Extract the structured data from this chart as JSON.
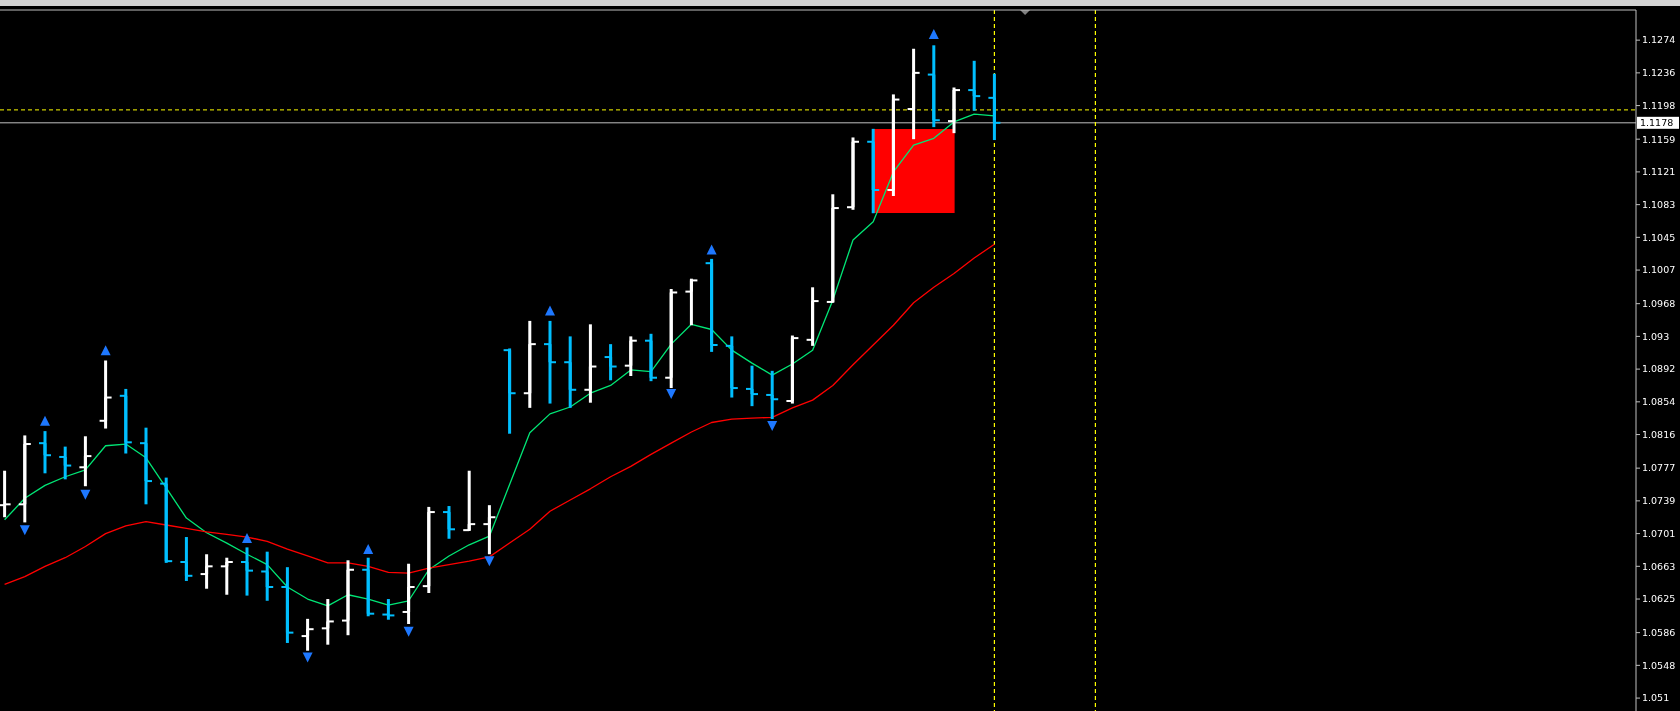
{
  "chart_data": {
    "type": "candlestick",
    "categories": [
      null,
      null,
      null,
      null,
      null,
      null,
      null,
      null,
      null,
      null,
      null,
      null,
      null,
      null,
      null,
      null,
      null,
      null,
      null,
      null,
      null,
      null,
      null,
      null,
      null,
      null,
      null,
      null,
      null,
      null,
      null,
      null,
      null,
      null,
      null,
      null,
      null,
      null,
      null,
      null,
      null,
      null,
      null,
      null,
      null,
      null,
      null,
      null,
      null,
      null
    ],
    "ohlc": [
      [
        1.0734,
        1.0774,
        1.072,
        1.0735
      ],
      [
        1.0735,
        1.0815,
        1.0714,
        1.0805
      ],
      [
        1.0806,
        1.082,
        1.0771,
        1.0792
      ],
      [
        1.079,
        1.0802,
        1.0764,
        1.078
      ],
      [
        1.0778,
        1.0814,
        1.0756,
        1.0791
      ],
      [
        1.0832,
        1.0902,
        1.0823,
        1.0859
      ],
      [
        1.0861,
        1.0869,
        1.0794,
        1.0807
      ],
      [
        1.0806,
        1.0824,
        1.0735,
        1.0762
      ],
      [
        1.0759,
        1.0766,
        1.0667,
        1.0669
      ],
      [
        1.0668,
        1.0697,
        1.0646,
        1.0652
      ],
      [
        1.0654,
        1.0677,
        1.0637,
        1.0663
      ],
      [
        1.0663,
        1.0673,
        1.063,
        1.0668
      ],
      [
        1.0668,
        1.0685,
        1.0629,
        1.0658
      ],
      [
        1.0657,
        1.068,
        1.0623,
        1.0639
      ],
      [
        1.0639,
        1.0662,
        1.0574,
        1.0586
      ],
      [
        1.0582,
        1.0602,
        1.0565,
        1.059
      ],
      [
        1.0591,
        1.0625,
        1.0572,
        1.0599
      ],
      [
        1.06,
        1.067,
        1.0583,
        1.0659
      ],
      [
        1.0659,
        1.0673,
        1.0605,
        1.0608
      ],
      [
        1.0607,
        1.0625,
        1.0601,
        1.0606
      ],
      [
        1.061,
        1.0666,
        1.0596,
        1.0639
      ],
      [
        1.064,
        1.0732,
        1.0632,
        1.0726
      ],
      [
        1.0726,
        1.0733,
        1.0695,
        1.0706
      ],
      [
        1.0705,
        1.0774,
        1.0704,
        1.0712
      ],
      [
        1.0712,
        1.0734,
        1.0677,
        1.072
      ],
      [
        1.0914,
        1.0916,
        1.0817,
        1.0864
      ],
      [
        1.0864,
        1.0948,
        1.0847,
        1.0921
      ],
      [
        1.0921,
        1.0948,
        1.0852,
        1.09
      ],
      [
        1.09,
        1.093,
        1.0847,
        1.0868
      ],
      [
        1.0868,
        1.0944,
        1.0853,
        1.0895
      ],
      [
        1.0906,
        1.0921,
        1.0879,
        1.0895
      ],
      [
        1.0896,
        1.093,
        1.0884,
        1.0925
      ],
      [
        1.0925,
        1.0933,
        1.0878,
        1.0882
      ],
      [
        1.0882,
        1.0985,
        1.087,
        1.0981
      ],
      [
        1.0982,
        1.0997,
        1.0943,
        1.0995
      ],
      [
        1.1015,
        1.102,
        1.0912,
        1.092
      ],
      [
        1.0919,
        1.093,
        1.0859,
        1.087
      ],
      [
        1.0869,
        1.0896,
        1.0849,
        1.0863
      ],
      [
        1.0862,
        1.089,
        1.0834,
        1.0857
      ],
      [
        1.0855,
        1.0931,
        1.0852,
        1.0928
      ],
      [
        1.0926,
        1.0987,
        1.0919,
        1.0971
      ],
      [
        1.097,
        1.1095,
        1.0969,
        1.1079
      ],
      [
        1.108,
        1.1161,
        1.1077,
        1.1156
      ],
      [
        1.1156,
        1.1171,
        1.1073,
        1.11
      ],
      [
        1.11,
        1.1211,
        1.1093,
        1.1205
      ],
      [
        1.1194,
        1.1264,
        1.1159,
        1.1236
      ],
      [
        1.1234,
        1.1268,
        1.1173,
        1.1181
      ],
      [
        1.118,
        1.1219,
        1.1166,
        1.1216
      ],
      [
        1.1216,
        1.125,
        1.1192,
        1.1209
      ],
      [
        1.1207,
        1.1235,
        1.1158,
        1.1178
      ]
    ],
    "colors": [
      "#ffffff",
      "#ffffff",
      "#00bfff",
      "#00bfff",
      "#ffffff",
      "#ffffff",
      "#00bfff",
      "#00bfff",
      "#00bfff",
      "#00bfff",
      "#ffffff",
      "#ffffff",
      "#00bfff",
      "#00bfff",
      "#00bfff",
      "#ffffff",
      "#ffffff",
      "#ffffff",
      "#00bfff",
      "#00bfff",
      "#ffffff",
      "#ffffff",
      "#00bfff",
      "#ffffff",
      "#ffffff",
      "#00bfff",
      "#ffffff",
      "#00bfff",
      "#00bfff",
      "#ffffff",
      "#00bfff",
      "#ffffff",
      "#00bfff",
      "#ffffff",
      "#ffffff",
      "#00bfff",
      "#00bfff",
      "#00bfff",
      "#00bfff",
      "#ffffff",
      "#ffffff",
      "#ffffff",
      "#ffffff",
      "#00bfff",
      "#ffffff",
      "#ffffff",
      "#00bfff",
      "#ffffff",
      "#00bfff",
      "#00bfff"
    ],
    "series": [
      {
        "type": "line",
        "color": "#00e676",
        "values": [
          1.0717,
          1.0742,
          1.0757,
          1.0767,
          1.0775,
          1.0803,
          1.0805,
          1.0789,
          1.0754,
          1.0719,
          1.0702,
          1.069,
          1.0677,
          1.0665,
          1.0639,
          1.0625,
          1.0617,
          1.063,
          1.0625,
          1.0618,
          1.0623,
          1.0659,
          1.0675,
          1.0688,
          1.0698,
          1.0758,
          1.0818,
          1.084,
          1.0848,
          1.0864,
          1.0873,
          1.0891,
          1.0889,
          1.0921,
          1.0944,
          1.0938,
          1.0914,
          1.0899,
          1.0885,
          1.0898,
          1.0914,
          1.0972,
          1.1042,
          1.1063,
          1.1121,
          1.1152,
          1.116,
          1.1179,
          1.1188,
          1.1186
        ]
      },
      {
        "type": "line",
        "color": "#ff0000",
        "values": [
          1.0642,
          1.0651,
          1.0663,
          1.0673,
          1.0686,
          1.0701,
          1.071,
          1.0715,
          1.0711,
          1.0707,
          1.0703,
          1.07,
          1.0697,
          1.0692,
          1.0683,
          1.0675,
          1.0667,
          1.0667,
          1.0663,
          1.0656,
          1.0655,
          1.0661,
          1.0665,
          1.0669,
          1.0674,
          1.069,
          1.0706,
          1.0727,
          1.074,
          1.0753,
          1.0767,
          1.0779,
          1.0793,
          1.0806,
          1.0819,
          1.083,
          1.0834,
          1.0835,
          1.0836,
          1.0847,
          1.0856,
          1.0873,
          1.0897,
          1.092,
          1.0943,
          1.0969,
          1.0987,
          1.1003,
          1.1021,
          1.1037
        ]
      },
      {
        "type": "scatter",
        "color": "#1e78ff",
        "marker": "triangle",
        "values": [
          null,
          null,
          1.0832,
          null,
          null,
          1.0914,
          null,
          null,
          null,
          null,
          null,
          null,
          1.0696,
          null,
          null,
          null,
          null,
          null,
          1.0683,
          null,
          null,
          null,
          null,
          null,
          null,
          null,
          null,
          1.096,
          null,
          null,
          null,
          null,
          null,
          null,
          null,
          1.1031,
          null,
          null,
          null,
          null,
          null,
          null,
          null,
          null,
          null,
          null,
          1.1281,
          null,
          null,
          null
        ]
      },
      {
        "type": "scatter",
        "color": "#1e78ff",
        "marker": "triangle",
        "values": [
          null,
          1.0705,
          null,
          null,
          1.0746,
          null,
          null,
          null,
          null,
          null,
          null,
          null,
          null,
          null,
          null,
          1.0557,
          null,
          null,
          null,
          null,
          1.0587,
          null,
          null,
          null,
          1.0669,
          null,
          null,
          null,
          null,
          null,
          null,
          null,
          null,
          1.0863,
          null,
          null,
          null,
          null,
          1.0826,
          null,
          null,
          null,
          null,
          null,
          null,
          null,
          null,
          null,
          null,
          null
        ]
      }
    ],
    "ylim": [
      1.0495,
      1.1309
    ],
    "yticks": [
      1.051,
      1.0548,
      1.0586,
      1.0625,
      1.0663,
      1.0701,
      1.0739,
      1.0777,
      1.0816,
      1.0854,
      1.0892,
      1.093,
      1.0968,
      1.1007,
      1.1045,
      1.1083,
      1.1121,
      1.1159,
      1.1198,
      1.1236,
      1.1274
    ],
    "tick_labels": "y",
    "ref_lines": [
      {
        "axis": "y",
        "value": 1.1193,
        "color": "#ffff00",
        "line_style": "dashed"
      },
      {
        "axis": "y",
        "value": 1.1178,
        "color": "#c0c0c0",
        "line_style": "solid",
        "label": "1.1178"
      }
    ]
  }
}
